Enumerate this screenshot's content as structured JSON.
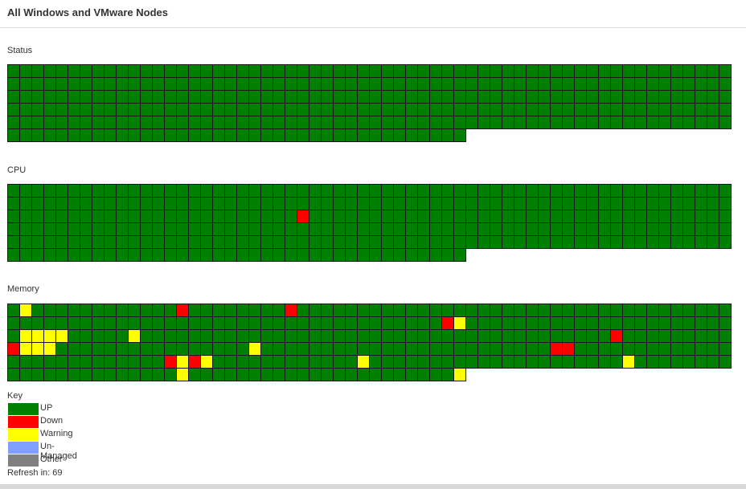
{
  "header": {
    "title": "All Windows and VMware Nodes"
  },
  "colors": {
    "up": "#008000",
    "down": "#ff0000",
    "warning": "#ffff00",
    "unmanaged": "#80a0ff",
    "other": "#808080"
  },
  "grids": [
    {
      "label": "Status",
      "total": 338,
      "columns": 60,
      "exceptions": {}
    },
    {
      "label": "CPU",
      "total": 338,
      "columns": 60,
      "exceptions": {
        "144": "down"
      }
    },
    {
      "label": "Memory",
      "total": 338,
      "columns": 60,
      "exceptions": {
        "1": "warning",
        "14": "down",
        "23": "down",
        "96": "down",
        "97": "warning",
        "122": "warning",
        "123": "warning",
        "124": "warning",
        "121": "warning",
        "130": "warning",
        "170": "down",
        "180": "down",
        "181": "warning",
        "182": "warning",
        "183": "warning",
        "200": "warning",
        "225": "down",
        "226": "down",
        "253": "down",
        "255": "down",
        "256": "warning",
        "269": "warning",
        "291": "warning",
        "254": "warning",
        "314": "warning",
        "337": "warning"
      }
    }
  ],
  "key": {
    "title": "Key",
    "items": [
      {
        "label": "UP",
        "status": "up"
      },
      {
        "label": "Down",
        "status": "down"
      },
      {
        "label": "Warning",
        "status": "warning"
      },
      {
        "label": "Un-Managed",
        "status": "unmanaged"
      },
      {
        "label": "Other",
        "status": "other"
      }
    ]
  },
  "refresh": {
    "text": "Refresh in: 69"
  }
}
